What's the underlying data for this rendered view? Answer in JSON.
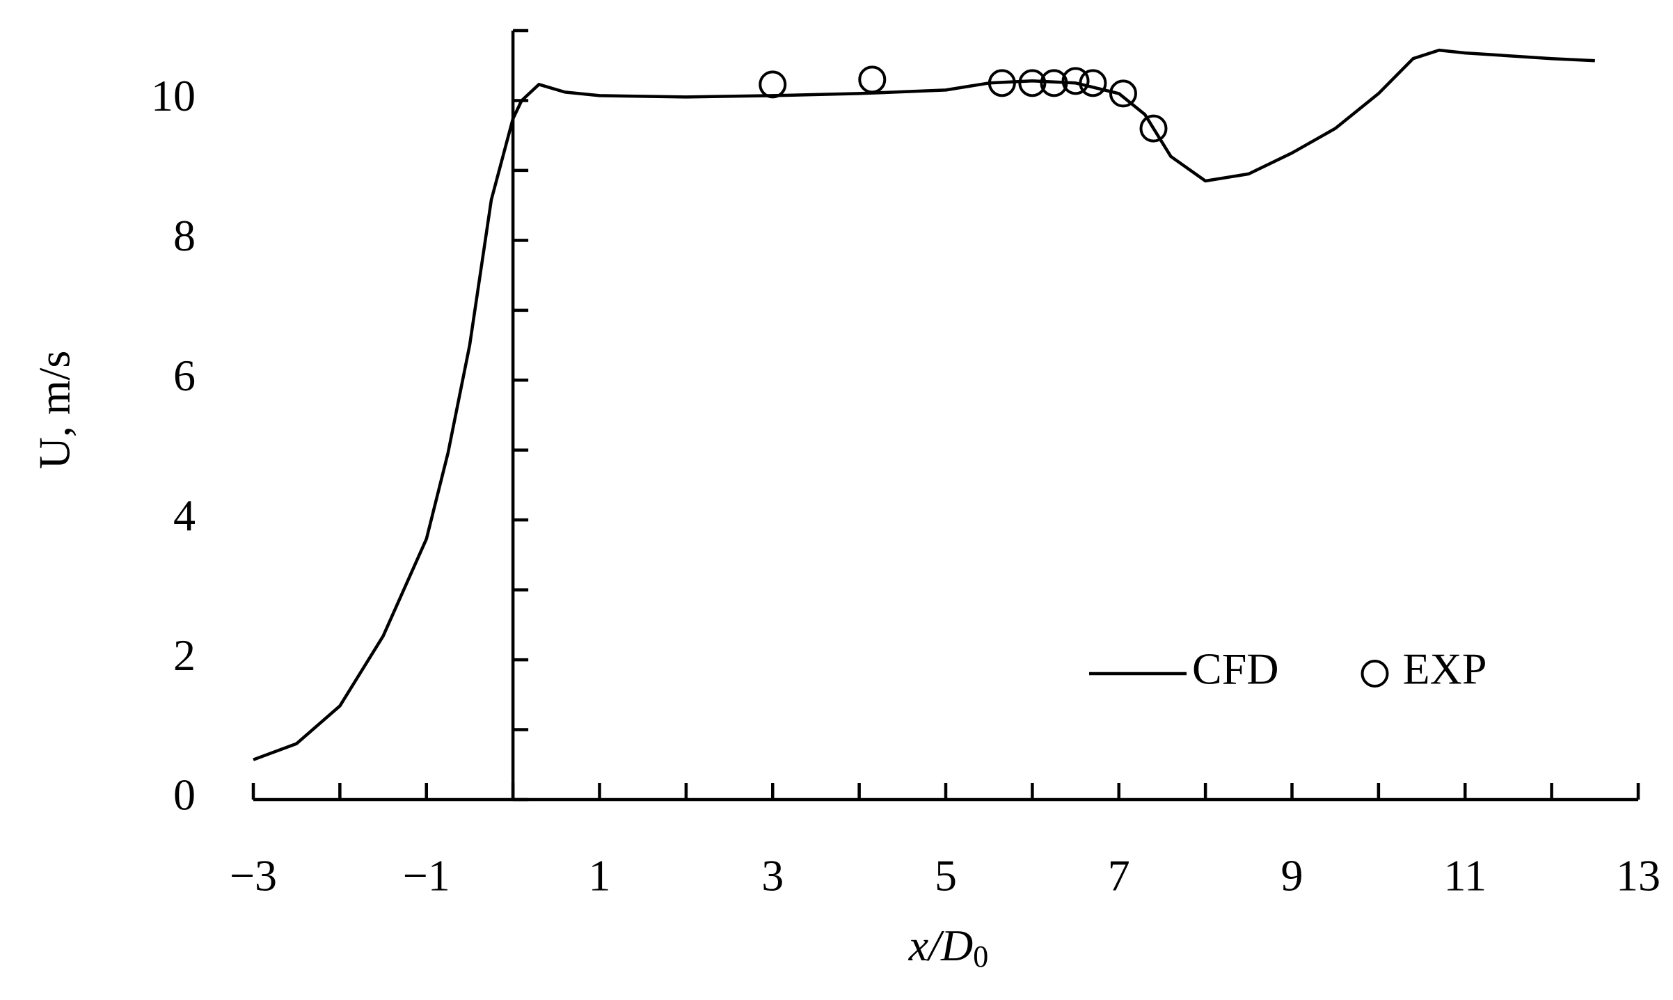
{
  "chart_data": {
    "type": "line",
    "ylabel": "U, m/s",
    "xlabel": "x/D",
    "xlabel_subscript": "0",
    "xlim": [
      -3,
      13
    ],
    "ylim": [
      0,
      11
    ],
    "xticks": [
      {
        "value": -3,
        "label": "−3"
      },
      {
        "value": -1,
        "label": "−1"
      },
      1,
      3,
      5,
      7,
      9,
      11,
      13
    ],
    "minor_xticks": [
      -2,
      0,
      2,
      4,
      6,
      8,
      10,
      12
    ],
    "yticks": [
      0,
      2,
      4,
      6,
      8,
      10
    ],
    "minor_yticks": [
      1,
      3,
      5,
      7,
      9,
      11
    ],
    "legend": "lower right",
    "series": [
      {
        "name": "CFD",
        "style": "line",
        "color": "#000000",
        "x": [
          -3,
          -2.5,
          -2,
          -1.5,
          -1,
          -0.75,
          -0.5,
          -0.25,
          0,
          0.1,
          0.3,
          0.6,
          1,
          2,
          3,
          4,
          5,
          5.5,
          6,
          6.5,
          7,
          7.3,
          7.6,
          8,
          8.5,
          9,
          9.5,
          10,
          10.4,
          10.7,
          11,
          12,
          12.5
        ],
        "values": [
          0.57,
          0.8,
          1.34,
          2.34,
          3.73,
          4.96,
          6.5,
          8.58,
          9.74,
          10.0,
          10.23,
          10.12,
          10.07,
          10.05,
          10.07,
          10.1,
          10.15,
          10.25,
          10.28,
          10.25,
          10.1,
          9.8,
          9.2,
          8.85,
          8.95,
          9.25,
          9.6,
          10.1,
          10.6,
          10.72,
          10.68,
          10.6,
          10.57
        ]
      },
      {
        "name": "EXP",
        "style": "circle",
        "color": "#000000",
        "x": [
          3.0,
          4.15,
          5.65,
          6.0,
          6.25,
          6.5,
          6.7,
          7.05,
          7.4
        ],
        "values": [
          10.23,
          10.3,
          10.25,
          10.25,
          10.25,
          10.28,
          10.25,
          10.1,
          9.6
        ]
      }
    ]
  }
}
